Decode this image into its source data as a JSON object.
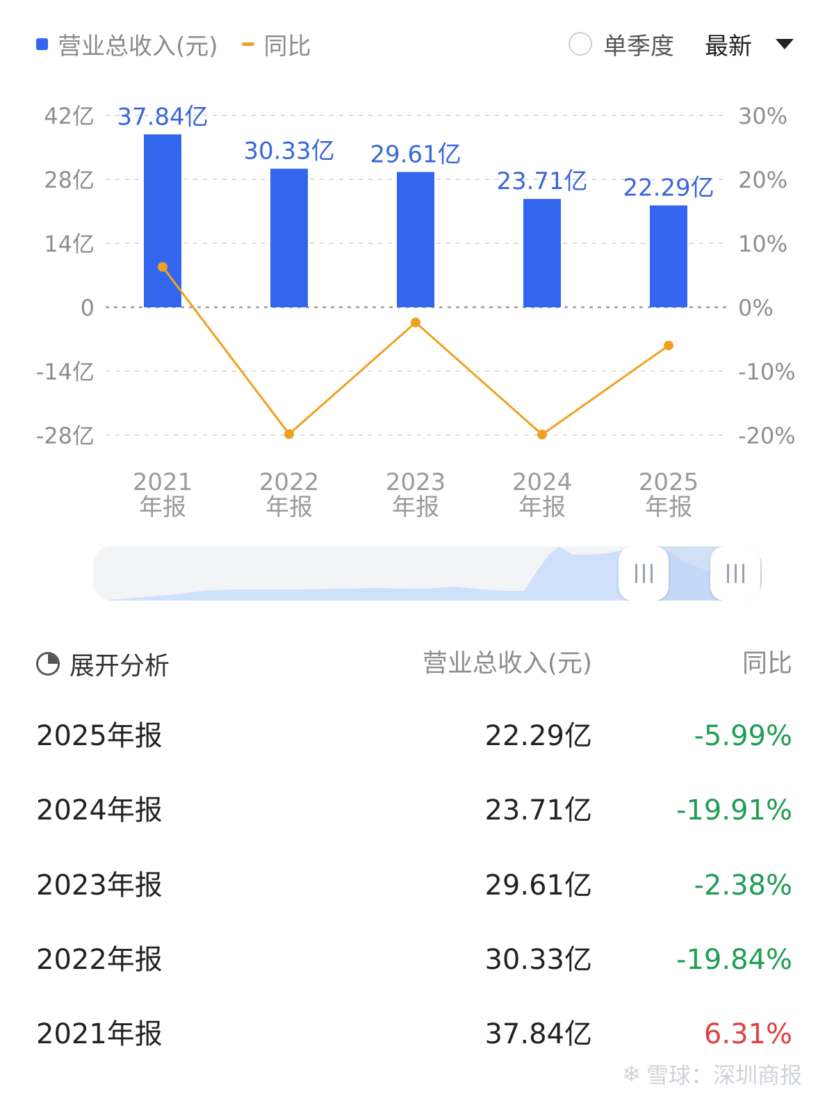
{
  "legend": {
    "revenue_label": "营业总收入(元)",
    "yoy_label": "同比"
  },
  "controls": {
    "single_quarter_label": "单季度",
    "latest_label": "最新"
  },
  "colors": {
    "bar": "#3366ee",
    "line": "#f0a020",
    "value_label": "#3a66d8",
    "negative": "#1f9d55",
    "positive": "#e04040"
  },
  "chart_data": {
    "type": "bar",
    "categories": [
      [
        "2021",
        "年报"
      ],
      [
        "2022",
        "年报"
      ],
      [
        "2023",
        "年报"
      ],
      [
        "2024",
        "年报"
      ],
      [
        "2025",
        "年报"
      ]
    ],
    "series": [
      {
        "name": "营业总收入(元)",
        "type": "bar",
        "axis": "left",
        "values": [
          37.84,
          30.33,
          29.61,
          23.71,
          22.29
        ],
        "labels": [
          "37.84亿",
          "30.33亿",
          "29.61亿",
          "23.71亿",
          "22.29亿"
        ]
      },
      {
        "name": "同比",
        "type": "line",
        "axis": "right",
        "values": [
          6.31,
          -19.84,
          -2.38,
          -19.91,
          -5.99
        ]
      }
    ],
    "y_left": {
      "ticks": [
        42,
        28,
        14,
        0,
        -14,
        -28
      ],
      "tick_labels": [
        "42亿",
        "28亿",
        "14亿",
        "0",
        "-14亿",
        "-28亿"
      ],
      "range": [
        -28,
        42
      ]
    },
    "y_right": {
      "ticks": [
        30,
        20,
        10,
        0,
        -10,
        -20
      ],
      "tick_labels": [
        "30%",
        "20%",
        "10%",
        "0%",
        "-10%",
        "-20%"
      ],
      "range": [
        -20,
        30
      ]
    },
    "grid": true
  },
  "table": {
    "expand_label": "展开分析",
    "col_revenue": "营业总收入(元)",
    "col_yoy": "同比",
    "rows": [
      {
        "period": "2025年报",
        "revenue": "22.29亿",
        "yoy": "-5.99%"
      },
      {
        "period": "2024年报",
        "revenue": "23.71亿",
        "yoy": "-19.91%"
      },
      {
        "period": "2023年报",
        "revenue": "29.61亿",
        "yoy": "-2.38%"
      },
      {
        "period": "2022年报",
        "revenue": "30.33亿",
        "yoy": "-19.84%"
      },
      {
        "period": "2021年报",
        "revenue": "37.84亿",
        "yoy": "6.31%"
      }
    ]
  },
  "watermark": {
    "text": "雪球：深圳商报",
    "icon": "snowball-logo-icon"
  }
}
